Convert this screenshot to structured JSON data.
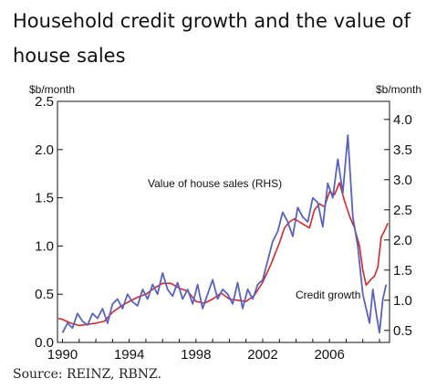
{
  "title": "Household credit growth and the value of house sales",
  "source": "Source: REINZ, RBNZ.",
  "chart_data": {
    "type": "line",
    "left_unit": "$b/month",
    "right_unit": "$b/month",
    "left_ylim": [
      0.0,
      2.5
    ],
    "left_ticks": [
      "0.0",
      "0.5",
      "1.0",
      "1.5",
      "2.0",
      "2.5"
    ],
    "right_ylim": [
      0.3,
      4.3
    ],
    "right_ticks": [
      "0.5",
      "1.0",
      "1.5",
      "2.0",
      "2.5",
      "3.0",
      "3.5",
      "4.0"
    ],
    "xlim": [
      1989.7,
      2009.6
    ],
    "x_ticks": [
      "1990",
      "1994",
      "1998",
      "2002",
      "2006"
    ],
    "grid": false,
    "series": [
      {
        "name": "Value of house sales (RHS)",
        "axis": "right",
        "color": "#d0282b",
        "x": [
          1989.75,
          1990.0,
          1990.5,
          1991.0,
          1991.5,
          1992.0,
          1992.5,
          1993.0,
          1993.5,
          1994.0,
          1994.5,
          1995.0,
          1995.5,
          1996.0,
          1996.5,
          1997.0,
          1997.5,
          1998.0,
          1998.5,
          1999.0,
          1999.5,
          2000.0,
          2000.5,
          2001.0,
          2001.5,
          2002.0,
          2002.5,
          2003.0,
          2003.3,
          2003.6,
          2003.9,
          2004.2,
          2004.5,
          2004.8,
          2005.1,
          2005.4,
          2005.7,
          2006.0,
          2006.3,
          2006.6,
          2006.9,
          2007.2,
          2007.5,
          2007.8,
          2008.0,
          2008.2,
          2008.5,
          2008.7,
          2008.9,
          2009.1,
          2009.3,
          2009.5
        ],
        "values": [
          0.7,
          0.68,
          0.62,
          0.58,
          0.6,
          0.62,
          0.65,
          0.8,
          0.9,
          0.98,
          1.05,
          1.1,
          1.2,
          1.28,
          1.28,
          1.2,
          1.15,
          0.98,
          0.95,
          1.02,
          1.12,
          1.02,
          1.0,
          0.98,
          1.08,
          1.3,
          1.6,
          1.95,
          2.2,
          2.3,
          2.35,
          2.3,
          2.25,
          2.2,
          2.5,
          2.6,
          2.55,
          2.8,
          2.75,
          2.95,
          2.65,
          2.4,
          2.2,
          1.9,
          1.5,
          1.25,
          1.35,
          1.4,
          1.55,
          2.05,
          2.15,
          2.28
        ]
      },
      {
        "name": "Credit growth",
        "axis": "left",
        "color": "#5863c1",
        "x": [
          1990.0,
          1990.3,
          1990.6,
          1990.9,
          1991.2,
          1991.5,
          1991.8,
          1992.1,
          1992.4,
          1992.7,
          1993.0,
          1993.3,
          1993.6,
          1993.9,
          1994.2,
          1994.5,
          1994.8,
          1995.1,
          1995.4,
          1995.7,
          1996.0,
          1996.3,
          1996.6,
          1996.9,
          1997.2,
          1997.5,
          1997.8,
          1998.1,
          1998.4,
          1998.7,
          1999.0,
          1999.3,
          1999.6,
          1999.9,
          2000.2,
          2000.5,
          2000.8,
          2001.1,
          2001.4,
          2001.7,
          2002.0,
          2002.3,
          2002.6,
          2002.9,
          2003.2,
          2003.5,
          2003.8,
          2004.1,
          2004.4,
          2004.7,
          2005.0,
          2005.3,
          2005.6,
          2005.9,
          2006.2,
          2006.5,
          2006.8,
          2007.1,
          2007.4,
          2007.7,
          2008.0,
          2008.2,
          2008.4,
          2008.6,
          2008.8,
          2009.0,
          2009.2,
          2009.4
        ],
        "values": [
          0.1,
          0.2,
          0.15,
          0.3,
          0.22,
          0.18,
          0.3,
          0.25,
          0.35,
          0.2,
          0.4,
          0.45,
          0.35,
          0.5,
          0.42,
          0.38,
          0.55,
          0.45,
          0.6,
          0.5,
          0.72,
          0.55,
          0.48,
          0.62,
          0.45,
          0.55,
          0.4,
          0.6,
          0.35,
          0.5,
          0.65,
          0.45,
          0.55,
          0.5,
          0.4,
          0.62,
          0.35,
          0.55,
          0.45,
          0.6,
          0.65,
          0.85,
          1.05,
          1.15,
          1.35,
          1.25,
          1.1,
          1.4,
          1.3,
          1.25,
          1.5,
          1.45,
          1.2,
          1.65,
          1.5,
          1.9,
          1.55,
          2.15,
          1.3,
          1.0,
          0.5,
          0.35,
          0.2,
          0.55,
          0.3,
          0.1,
          0.45,
          0.6
        ]
      }
    ],
    "annotations": [
      {
        "text": "Value of house sales (RHS)",
        "color": "#d0282b"
      },
      {
        "text": "Credit growth",
        "color": "#5863c1"
      }
    ]
  }
}
